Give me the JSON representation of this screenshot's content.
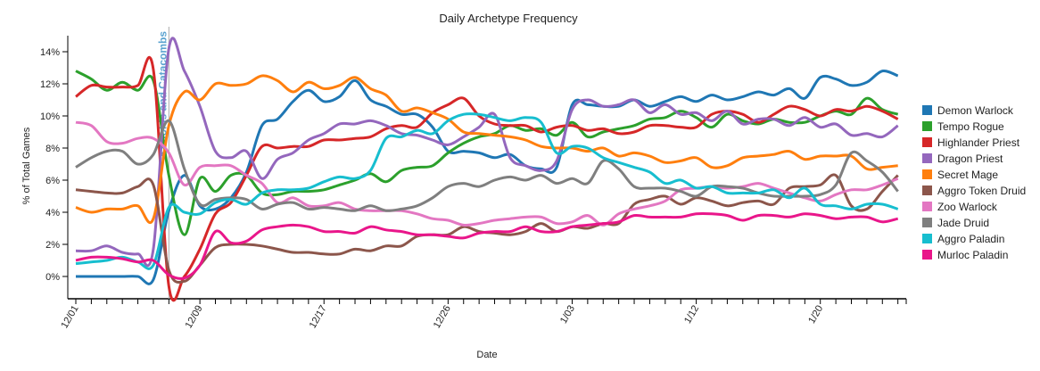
{
  "chart_data": {
    "type": "line",
    "title": "Daily Archetype Frequency",
    "xlabel": "Date",
    "ylabel": "% of Total Games",
    "ylim": [
      -1.4,
      15
    ],
    "yticks": [
      0,
      2,
      4,
      6,
      8,
      10,
      12,
      14
    ],
    "ytick_suffix": "%",
    "num_points": 54,
    "xtick_labels": [
      {
        "index": 0,
        "label": "12/01"
      },
      {
        "index": 8,
        "label": "12/09"
      },
      {
        "index": 16,
        "label": "12/17"
      },
      {
        "index": 24,
        "label": "12/26"
      },
      {
        "index": 32,
        "label": "1/03"
      },
      {
        "index": 40,
        "label": "1/12"
      },
      {
        "index": 48,
        "label": "1/20"
      }
    ],
    "annotations": [
      {
        "index": 6,
        "label": "Kobolds and Catacombs",
        "color": "#5ba3d0"
      }
    ],
    "legend_position": "right",
    "grid": false,
    "series": [
      {
        "name": "Demon Warlock",
        "color": "#1f77b4",
        "values": [
          0,
          0,
          0,
          0,
          0,
          -0.2,
          4.1,
          6.3,
          4.4,
          4.2,
          4.9,
          6.5,
          9.4,
          9.8,
          10.9,
          11.6,
          10.9,
          11.2,
          12.2,
          11.0,
          10.6,
          10.1,
          10.1,
          9.3,
          7.8,
          7.8,
          7.7,
          7.4,
          7.6,
          6.9,
          6.7,
          6.8,
          10.7,
          10.7,
          10.6,
          10.6,
          11.0,
          10.6,
          10.9,
          11.2,
          10.9,
          11.3,
          11.0,
          11.2,
          11.5,
          11.3,
          11.7,
          11.1,
          12.4,
          12.3,
          11.9,
          12.1,
          12.8,
          12.5
        ]
      },
      {
        "name": "Tempo Rogue",
        "color": "#2ca02c",
        "values": [
          12.8,
          12.3,
          11.6,
          12.1,
          11.6,
          12.2,
          6.3,
          2.6,
          6.1,
          5.3,
          6.3,
          6.3,
          5.2,
          5.1,
          5.3,
          5.3,
          5.4,
          5.7,
          6.0,
          6.4,
          5.9,
          6.6,
          6.8,
          6.9,
          7.7,
          8.3,
          8.7,
          8.9,
          9.4,
          9.1,
          9.2,
          8.8,
          9.6,
          8.7,
          9.0,
          9.2,
          9.4,
          9.8,
          9.9,
          10.3,
          9.9,
          9.3,
          10.1,
          9.7,
          9.5,
          9.8,
          9.6,
          9.6,
          10.0,
          10.3,
          10.1,
          11.1,
          10.4,
          10.1
        ]
      },
      {
        "name": "Highlander Priest",
        "color": "#d62728",
        "values": [
          11.2,
          11.9,
          11.8,
          11.8,
          11.9,
          12.9,
          -0.6,
          0.0,
          1.7,
          3.9,
          4.6,
          6.3,
          8.1,
          8.0,
          8.1,
          8.1,
          8.5,
          8.5,
          8.6,
          8.7,
          9.2,
          9.4,
          9.3,
          10.2,
          10.7,
          11.1,
          10.0,
          9.5,
          9.4,
          9.4,
          9.0,
          9.3,
          9.4,
          9.1,
          9.2,
          8.9,
          9.0,
          9.4,
          9.4,
          9.3,
          9.3,
          10.1,
          10.3,
          10.1,
          9.6,
          10.1,
          10.6,
          10.4,
          10.0,
          10.4,
          10.3,
          10.6,
          10.3,
          9.8
        ]
      },
      {
        "name": "Dragon Priest",
        "color": "#9467bd",
        "values": [
          1.6,
          1.6,
          1.9,
          1.5,
          1.4,
          1.7,
          14.2,
          12.8,
          10.6,
          7.8,
          7.4,
          7.8,
          6.1,
          7.3,
          7.7,
          8.5,
          8.9,
          9.5,
          9.5,
          9.7,
          9.4,
          8.9,
          8.8,
          8.5,
          8.2,
          8.7,
          9.3,
          10.1,
          7.4,
          6.9,
          6.6,
          7.2,
          10.4,
          11.0,
          10.6,
          10.7,
          11.0,
          10.2,
          10.7,
          10.1,
          10.2,
          9.7,
          10.3,
          9.5,
          9.8,
          9.8,
          9.4,
          9.9,
          9.3,
          9.5,
          8.8,
          8.9,
          8.7,
          9.4
        ]
      },
      {
        "name": "Secret Mage",
        "color": "#ff7f0e",
        "values": [
          4.3,
          4.0,
          4.2,
          4.2,
          4.4,
          3.6,
          9.4,
          11.5,
          11.0,
          12.0,
          11.9,
          12.0,
          12.5,
          12.2,
          11.5,
          12.1,
          11.7,
          11.9,
          12.4,
          11.7,
          11.3,
          10.3,
          10.5,
          10.2,
          9.8,
          9.0,
          8.9,
          8.8,
          8.7,
          8.5,
          8.1,
          8.0,
          8.0,
          7.8,
          8.0,
          7.5,
          7.7,
          7.5,
          7.1,
          7.2,
          7.4,
          6.8,
          6.9,
          7.4,
          7.5,
          7.6,
          7.8,
          7.3,
          7.5,
          7.5,
          7.5,
          6.7,
          6.8,
          6.9
        ]
      },
      {
        "name": "Aggro Token Druid",
        "color": "#8c564b",
        "values": [
          5.4,
          5.3,
          5.2,
          5.2,
          5.6,
          5.7,
          0.4,
          -0.3,
          0.7,
          1.8,
          2.0,
          2.0,
          1.9,
          1.7,
          1.5,
          1.5,
          1.4,
          1.4,
          1.7,
          1.6,
          1.9,
          1.9,
          2.5,
          2.6,
          2.6,
          3.1,
          2.8,
          2.7,
          2.6,
          2.8,
          3.3,
          2.8,
          3.1,
          3.0,
          3.3,
          3.3,
          4.5,
          4.8,
          5.0,
          4.5,
          4.9,
          4.7,
          4.4,
          4.6,
          4.7,
          4.5,
          5.5,
          5.6,
          5.7,
          6.3,
          4.4,
          4.2,
          5.3,
          6.3
        ]
      },
      {
        "name": "Zoo Warlock",
        "color": "#e377c2",
        "values": [
          9.6,
          9.4,
          8.4,
          8.3,
          8.6,
          8.6,
          7.7,
          5.7,
          6.8,
          6.9,
          6.9,
          6.3,
          5.8,
          4.6,
          4.9,
          4.4,
          4.4,
          4.6,
          4.2,
          4.1,
          4.1,
          4.1,
          3.9,
          3.6,
          3.5,
          3.2,
          3.3,
          3.5,
          3.6,
          3.7,
          3.7,
          3.3,
          3.4,
          3.8,
          3.2,
          3.9,
          4.2,
          4.4,
          4.7,
          5.4,
          5.5,
          5.6,
          5.5,
          5.6,
          5.8,
          5.5,
          5.2,
          4.9,
          4.7,
          5.1,
          5.4,
          5.4,
          5.7,
          6.1
        ]
      },
      {
        "name": "Jade Druid",
        "color": "#7f7f7f",
        "values": [
          6.8,
          7.4,
          7.8,
          7.8,
          7.0,
          7.6,
          9.7,
          6.7,
          4.5,
          4.8,
          4.9,
          4.8,
          4.2,
          4.5,
          4.6,
          4.2,
          4.3,
          4.2,
          4.1,
          4.4,
          4.1,
          4.2,
          4.4,
          4.9,
          5.6,
          5.8,
          5.6,
          6.0,
          6.2,
          6.0,
          6.3,
          5.8,
          6.1,
          5.8,
          7.2,
          6.7,
          5.6,
          5.5,
          5.5,
          5.3,
          5.0,
          5.6,
          5.6,
          5.5,
          5.2,
          5.0,
          5.0,
          5.0,
          5.1,
          5.7,
          7.7,
          7.2,
          6.5,
          5.3
        ]
      },
      {
        "name": "Aggro Paladin",
        "color": "#17becf",
        "values": [
          0.8,
          0.9,
          1.0,
          1.2,
          0.9,
          0.7,
          4.3,
          4.0,
          3.9,
          4.6,
          4.8,
          4.5,
          5.2,
          5.4,
          5.4,
          5.5,
          5.9,
          6.2,
          6.1,
          6.6,
          8.6,
          8.7,
          9.1,
          8.9,
          9.7,
          10.1,
          10.1,
          9.9,
          9.7,
          9.9,
          9.6,
          7.7,
          8.1,
          8.0,
          7.4,
          7.1,
          6.8,
          6.5,
          5.8,
          6.0,
          5.5,
          5.6,
          5.2,
          5.2,
          5.2,
          5.4,
          4.9,
          5.5,
          4.5,
          4.4,
          4.2,
          4.5,
          4.5,
          4.2
        ]
      },
      {
        "name": "Murloc Paladin",
        "color": "#e9168a",
        "values": [
          1.0,
          1.2,
          1.2,
          1.1,
          0.9,
          1.0,
          0.1,
          -0.1,
          0.7,
          2.8,
          2.1,
          2.2,
          2.9,
          3.1,
          3.2,
          3.1,
          2.8,
          2.8,
          2.7,
          3.1,
          2.9,
          2.8,
          2.6,
          2.6,
          2.5,
          2.4,
          2.7,
          2.8,
          2.8,
          3.1,
          2.8,
          2.8,
          3.1,
          3.2,
          3.3,
          3.4,
          3.8,
          3.7,
          3.7,
          3.7,
          3.9,
          3.9,
          3.8,
          3.5,
          3.8,
          3.8,
          3.7,
          3.9,
          3.8,
          3.6,
          3.7,
          3.7,
          3.4,
          3.6
        ]
      }
    ]
  }
}
